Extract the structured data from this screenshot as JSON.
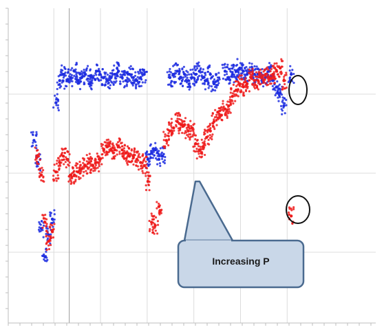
{
  "chart_data": {
    "type": "scatter",
    "title": "",
    "xlabel": "",
    "ylabel": "",
    "x_range": [
      0,
      100
    ],
    "y_range": [
      0,
      100
    ],
    "grid": true,
    "legend": "none",
    "series": [
      {
        "color": "#1f2ee0",
        "points": [
          [
            7,
            58
          ],
          [
            8,
            51
          ],
          [
            9,
            30
          ],
          [
            10,
            21
          ],
          [
            11,
            28
          ],
          [
            12,
            33
          ],
          [
            13,
            70
          ],
          [
            14,
            77
          ],
          [
            15,
            79
          ],
          [
            16,
            77
          ],
          [
            17,
            78
          ],
          [
            18,
            80
          ],
          [
            19,
            77
          ],
          [
            20,
            78
          ],
          [
            21,
            79
          ],
          [
            22,
            76
          ],
          [
            23,
            78
          ],
          [
            24,
            80
          ],
          [
            25,
            79
          ],
          [
            26,
            78
          ],
          [
            27,
            77
          ],
          [
            28,
            78
          ],
          [
            29,
            79
          ],
          [
            30,
            80
          ],
          [
            31,
            78
          ],
          [
            32,
            77
          ],
          [
            33,
            79
          ],
          [
            34,
            78
          ],
          [
            35,
            77
          ],
          [
            36,
            78
          ],
          [
            37,
            79
          ],
          [
            38,
            52
          ],
          [
            39,
            54
          ],
          [
            40,
            55
          ],
          [
            41,
            52
          ],
          [
            42,
            53
          ],
          [
            44,
            78
          ],
          [
            45,
            79
          ],
          [
            46,
            80
          ],
          [
            47,
            78
          ],
          [
            48,
            79
          ],
          [
            49,
            77
          ],
          [
            50,
            78
          ],
          [
            51,
            79
          ],
          [
            52,
            80
          ],
          [
            53,
            78
          ],
          [
            54,
            77
          ],
          [
            55,
            79
          ],
          [
            56,
            76
          ],
          [
            57,
            77
          ],
          [
            59,
            80
          ],
          [
            60,
            78
          ],
          [
            61,
            79
          ],
          [
            62,
            80
          ],
          [
            63,
            81
          ],
          [
            64,
            80
          ],
          [
            65,
            79
          ],
          [
            66,
            80
          ],
          [
            67,
            79
          ],
          [
            68,
            79
          ],
          [
            69,
            78
          ],
          [
            70,
            78
          ],
          [
            71,
            80
          ],
          [
            72,
            77
          ],
          [
            73,
            75
          ],
          [
            74,
            73
          ],
          [
            75,
            69
          ],
          [
            77,
            79
          ]
        ]
      },
      {
        "color": "#ee1c1c",
        "points": [
          [
            8,
            53
          ],
          [
            9,
            47
          ],
          [
            10,
            32
          ],
          [
            11,
            26
          ],
          [
            12,
            29
          ],
          [
            13,
            48
          ],
          [
            14,
            51
          ],
          [
            15,
            53
          ],
          [
            16,
            52
          ],
          [
            17,
            47
          ],
          [
            18,
            47
          ],
          [
            19,
            48
          ],
          [
            20,
            49
          ],
          [
            21,
            50
          ],
          [
            22,
            51
          ],
          [
            23,
            50
          ],
          [
            24,
            51
          ],
          [
            25,
            52
          ],
          [
            26,
            55
          ],
          [
            27,
            56
          ],
          [
            28,
            55
          ],
          [
            29,
            55
          ],
          [
            30,
            56
          ],
          [
            31,
            55
          ],
          [
            32,
            54
          ],
          [
            33,
            53
          ],
          [
            34,
            53
          ],
          [
            35,
            52
          ],
          [
            36,
            51
          ],
          [
            37,
            50
          ],
          [
            38,
            45
          ],
          [
            39,
            32
          ],
          [
            40,
            31
          ],
          [
            41,
            37
          ],
          [
            43,
            58
          ],
          [
            44,
            61
          ],
          [
            45,
            62
          ],
          [
            46,
            64
          ],
          [
            47,
            63
          ],
          [
            48,
            63
          ],
          [
            49,
            61
          ],
          [
            50,
            62
          ],
          [
            51,
            57
          ],
          [
            52,
            55
          ],
          [
            53,
            56
          ],
          [
            54,
            59
          ],
          [
            55,
            61
          ],
          [
            56,
            64
          ],
          [
            57,
            67
          ],
          [
            58,
            66
          ],
          [
            59,
            68
          ],
          [
            60,
            69
          ],
          [
            61,
            72
          ],
          [
            62,
            74
          ],
          [
            63,
            76
          ],
          [
            64,
            75
          ],
          [
            65,
            76
          ],
          [
            66,
            78
          ],
          [
            67,
            77
          ],
          [
            68,
            77
          ],
          [
            69,
            78
          ],
          [
            70,
            79
          ],
          [
            71,
            78
          ],
          [
            72,
            79
          ],
          [
            73,
            80
          ],
          [
            74,
            81
          ],
          [
            75,
            77
          ],
          [
            77,
            34
          ]
        ]
      }
    ],
    "annotations": [
      {
        "text": "Increasing P"
      }
    ]
  }
}
